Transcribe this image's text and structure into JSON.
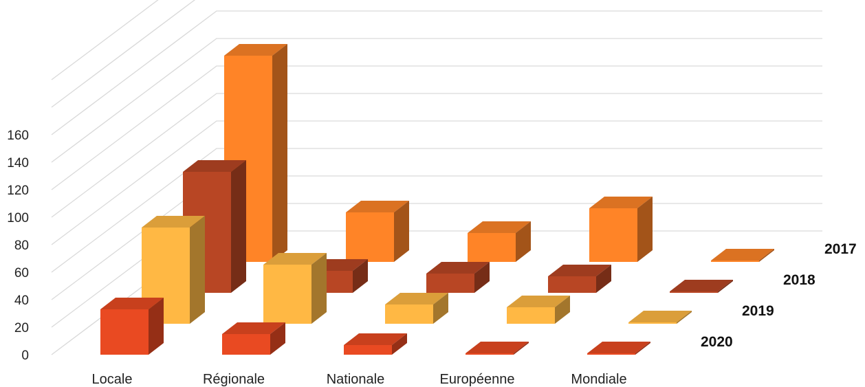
{
  "chart_data": {
    "type": "bar",
    "subtype": "3d-clustered-depth",
    "categories": [
      "Locale",
      "Régionale",
      "Nationale",
      "Européenne",
      "Mondiale"
    ],
    "series": [
      {
        "name": "2017",
        "values": [
          150,
          36,
          21,
          39,
          1
        ],
        "color": "#FF8427"
      },
      {
        "name": "2018",
        "values": [
          88,
          16,
          14,
          12,
          1
        ],
        "color": "#B84624"
      },
      {
        "name": "2019",
        "values": [
          70,
          43,
          14,
          12,
          1
        ],
        "color": "#FFB844"
      },
      {
        "name": "2020",
        "values": [
          33,
          15,
          7,
          0,
          0
        ],
        "color": "#E94A22"
      }
    ],
    "yticks": [
      0,
      20,
      40,
      60,
      80,
      100,
      120,
      140,
      160
    ],
    "ylim": [
      0,
      160
    ],
    "grid": true,
    "legend": "series labels at right of depth rows"
  }
}
